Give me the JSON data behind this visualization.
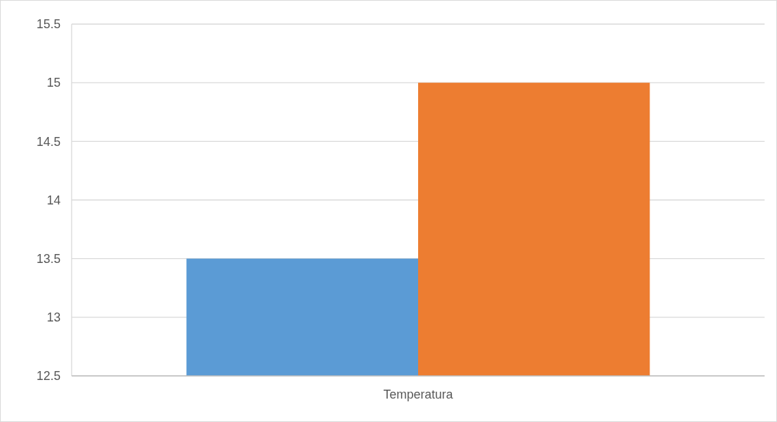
{
  "chart_data": {
    "type": "bar",
    "categories": [
      "Temperatura"
    ],
    "series": [
      {
        "color": "#5b9bd5",
        "values": [
          13.5
        ]
      },
      {
        "color": "#ed7d31",
        "values": [
          15
        ]
      }
    ],
    "ylim": [
      12.5,
      15.5
    ],
    "yticks": [
      12.5,
      13,
      13.5,
      14,
      14.5,
      15,
      15.5
    ],
    "grid": "y"
  }
}
